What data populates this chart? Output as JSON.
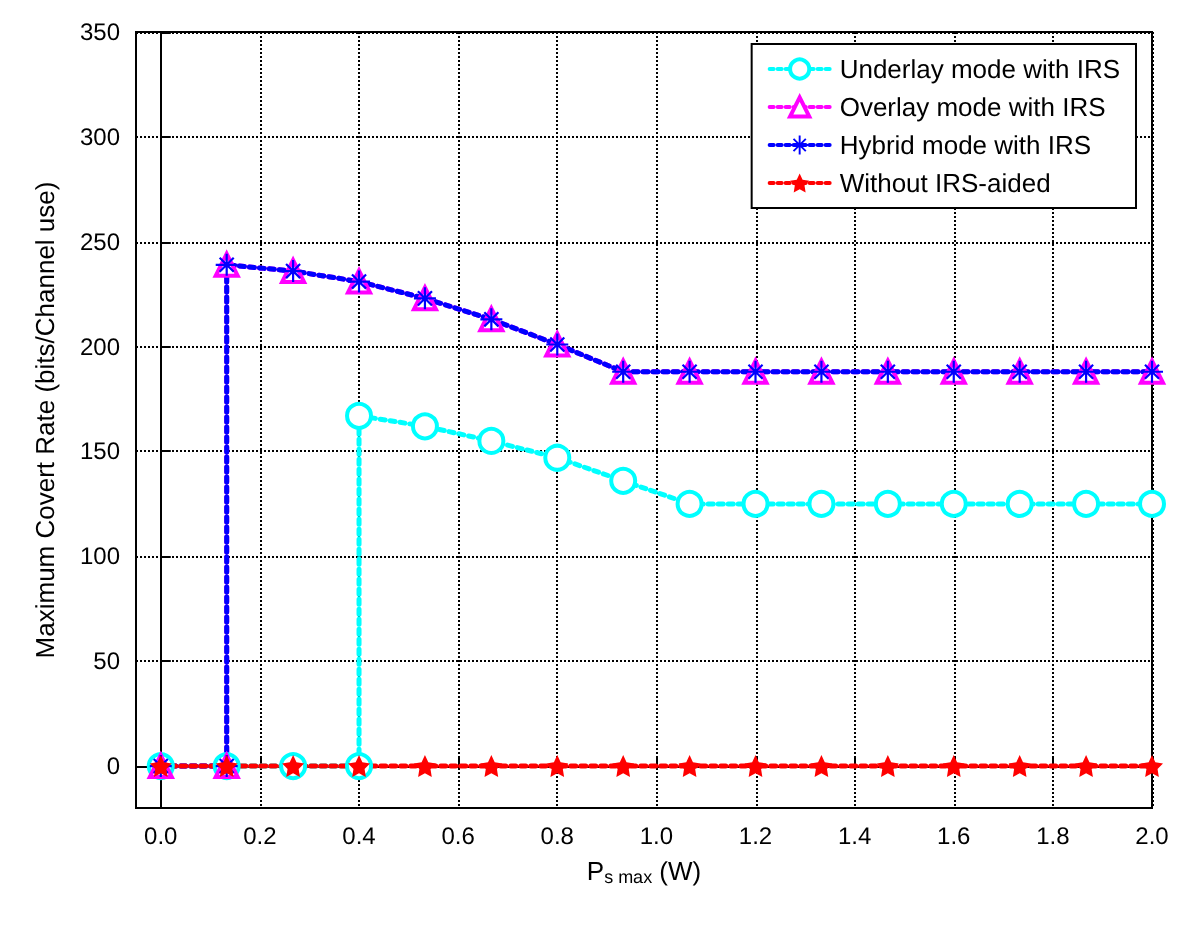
{
  "chart_data": {
    "type": "line",
    "xlabel": "P$_{s max}$ (W)",
    "ylabel": "Maximum Covert Rate (bits/Channel use)",
    "xlim": [
      -0.05,
      2
    ],
    "xticks": [
      {
        "value": 0,
        "label": "0.0"
      },
      {
        "value": 0.2,
        "label": "0.2"
      },
      {
        "value": 0.4,
        "label": "0.4"
      },
      {
        "value": 0.6,
        "label": "0.6"
      },
      {
        "value": 0.8,
        "label": "0.8"
      },
      {
        "value": 1,
        "label": "1.0"
      },
      {
        "value": 1.2,
        "label": "1.2"
      },
      {
        "value": 1.4,
        "label": "1.4"
      },
      {
        "value": 1.6,
        "label": "1.6"
      },
      {
        "value": 1.8,
        "label": "1.8"
      },
      {
        "value": 2,
        "label": "2.0"
      }
    ],
    "ylim": [
      -20,
      350
    ],
    "yticks": [
      0,
      50,
      100,
      150,
      200,
      250,
      300,
      350
    ],
    "grid": true,
    "legend": "top right",
    "line_style": "dotted",
    "series": [
      {
        "name": "Underlay mode with IRS",
        "color": "#00ffff",
        "marker": "circle",
        "x": [
          0,
          0.133,
          0.267,
          0.4,
          0.4,
          0.533,
          0.667,
          0.8,
          0.933,
          1.067,
          1.2,
          1.333,
          1.467,
          1.6,
          1.733,
          1.867,
          2
        ],
        "values": [
          0,
          0,
          0,
          0,
          167,
          162,
          155,
          147,
          136,
          125,
          125,
          125,
          125,
          125,
          125,
          125,
          125
        ]
      },
      {
        "name": "Overlay mode with IRS",
        "color": "#ff00ff",
        "marker": "triangle",
        "x": [
          0,
          0.133,
          0.133,
          0.267,
          0.4,
          0.533,
          0.667,
          0.8,
          0.933,
          1.067,
          1.2,
          1.333,
          1.467,
          1.6,
          1.733,
          1.867,
          2
        ],
        "values": [
          0,
          0,
          239,
          236,
          231,
          223,
          213,
          201,
          188,
          188,
          188,
          188,
          188,
          188,
          188,
          188,
          188
        ]
      },
      {
        "name": "Hybrid mode with IRS",
        "color": "#0000ff",
        "marker": "cross",
        "x": [
          0,
          0.133,
          0.133,
          0.267,
          0.4,
          0.533,
          0.667,
          0.8,
          0.933,
          1.067,
          1.2,
          1.333,
          1.467,
          1.6,
          1.733,
          1.867,
          2
        ],
        "values": [
          0,
          0,
          239,
          236,
          231,
          223,
          213,
          201,
          188,
          188,
          188,
          188,
          188,
          188,
          188,
          188,
          188
        ]
      },
      {
        "name": "Without IRS-aided",
        "color": "#ff0000",
        "marker": "star",
        "x": [
          0,
          0.133,
          0.267,
          0.4,
          0.533,
          0.667,
          0.8,
          0.933,
          1.067,
          1.2,
          1.333,
          1.467,
          1.6,
          1.733,
          1.867,
          2
        ],
        "values": [
          0,
          0,
          0,
          0,
          0,
          0,
          0,
          0,
          0,
          0,
          0,
          0,
          0,
          0,
          0,
          0
        ]
      }
    ]
  }
}
